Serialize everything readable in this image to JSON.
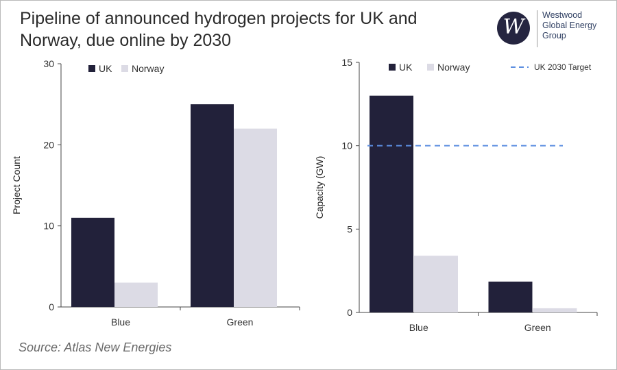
{
  "title": "Pipeline of announced hydrogen projects for UK and Norway, due online by 2030",
  "logo": {
    "icon": "W",
    "lines": [
      "Westwood",
      "Global Energy",
      "Group"
    ]
  },
  "source": "Source: Atlas New Energies",
  "colors": {
    "uk": "#22213a",
    "norway": "#dcdbe5",
    "target": "#5b8de0",
    "axis": "#444444"
  },
  "chart_data": [
    {
      "type": "bar",
      "title": "",
      "xlabel": "",
      "ylabel": "Project Count",
      "ylim": [
        0,
        30
      ],
      "yticks": [
        0,
        10,
        20,
        30
      ],
      "grid": false,
      "legend": "top-left",
      "categories": [
        "Blue",
        "Green"
      ],
      "series": [
        {
          "name": "UK",
          "values": [
            11,
            25
          ]
        },
        {
          "name": "Norway",
          "values": [
            3,
            22
          ]
        }
      ]
    },
    {
      "type": "bar",
      "title": "",
      "xlabel": "",
      "ylabel": "Capacity (GW)",
      "ylim": [
        0,
        15
      ],
      "yticks": [
        0,
        5,
        10,
        15
      ],
      "grid": false,
      "legend": "top",
      "categories": [
        "Blue",
        "Green"
      ],
      "series": [
        {
          "name": "UK",
          "values": [
            13,
            1.85
          ]
        },
        {
          "name": "Norway",
          "values": [
            3.4,
            0.25
          ]
        }
      ],
      "reference_lines": [
        {
          "name": "UK 2030 Target",
          "value": 10,
          "style": "dashed"
        }
      ]
    }
  ]
}
